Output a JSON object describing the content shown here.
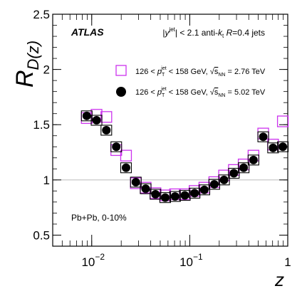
{
  "chart_data": {
    "type": "scatter",
    "title": "",
    "xlabel": "z",
    "ylabel": {
      "main": "R",
      "sub": "D(z)"
    },
    "xscale": "log",
    "xlim": [
      0.004,
      1.0
    ],
    "ylim": [
      0.4,
      2.5
    ],
    "reference_line": 1.0,
    "yticks": [
      {
        "value": 0.5,
        "label": "0.5"
      },
      {
        "value": 1.0,
        "label": "1"
      },
      {
        "value": 1.5,
        "label": "1.5"
      },
      {
        "value": 2.0,
        "label": "2"
      },
      {
        "value": 2.5,
        "label": "2.5"
      }
    ],
    "xticks": [
      {
        "value": 0.01,
        "base": "10",
        "exp": "−2"
      },
      {
        "value": 0.1,
        "base": "10",
        "exp": "−1"
      },
      {
        "value": 1.0,
        "base": "1",
        "exp": ""
      }
    ],
    "annotations": {
      "experiment": "ATLAS",
      "selection": "|y jet| < 2.1 anti-kt R=0.4 jets",
      "system": "Pb+Pb, 0-10%"
    },
    "legend_position": "top-right",
    "series": [
      {
        "name": "126 < pT jet < 158 GeV, √sNN = 2.76 TeV",
        "marker": "open-square",
        "color": "#cc33ee",
        "x": [
          0.0089,
          0.0112,
          0.0141,
          0.0178,
          0.0224,
          0.0282,
          0.0355,
          0.0447,
          0.0562,
          0.0708,
          0.0891,
          0.112,
          0.141,
          0.178,
          0.224,
          0.282,
          0.355,
          0.447,
          0.562,
          0.708,
          0.891
        ],
        "values": [
          1.56,
          1.59,
          1.57,
          1.27,
          1.22,
          0.97,
          0.93,
          0.88,
          0.86,
          0.87,
          0.87,
          0.9,
          0.93,
          0.98,
          1.04,
          1.09,
          1.14,
          1.22,
          1.42,
          1.32,
          1.53
        ]
      },
      {
        "name": "126 < pT jet < 158 GeV, √sNN = 5.02 TeV",
        "marker": "filled-circle",
        "color": "#000000",
        "x": [
          0.0089,
          0.0112,
          0.0141,
          0.0178,
          0.0224,
          0.0282,
          0.0355,
          0.0447,
          0.0562,
          0.0708,
          0.0891,
          0.112,
          0.141,
          0.178,
          0.224,
          0.282,
          0.355,
          0.447,
          0.562,
          0.708,
          0.891
        ],
        "values": [
          1.58,
          1.54,
          1.45,
          1.3,
          1.11,
          0.98,
          0.92,
          0.87,
          0.84,
          0.85,
          0.86,
          0.88,
          0.91,
          0.96,
          1.0,
          1.06,
          1.11,
          1.18,
          1.39,
          1.29,
          1.3
        ]
      }
    ]
  }
}
